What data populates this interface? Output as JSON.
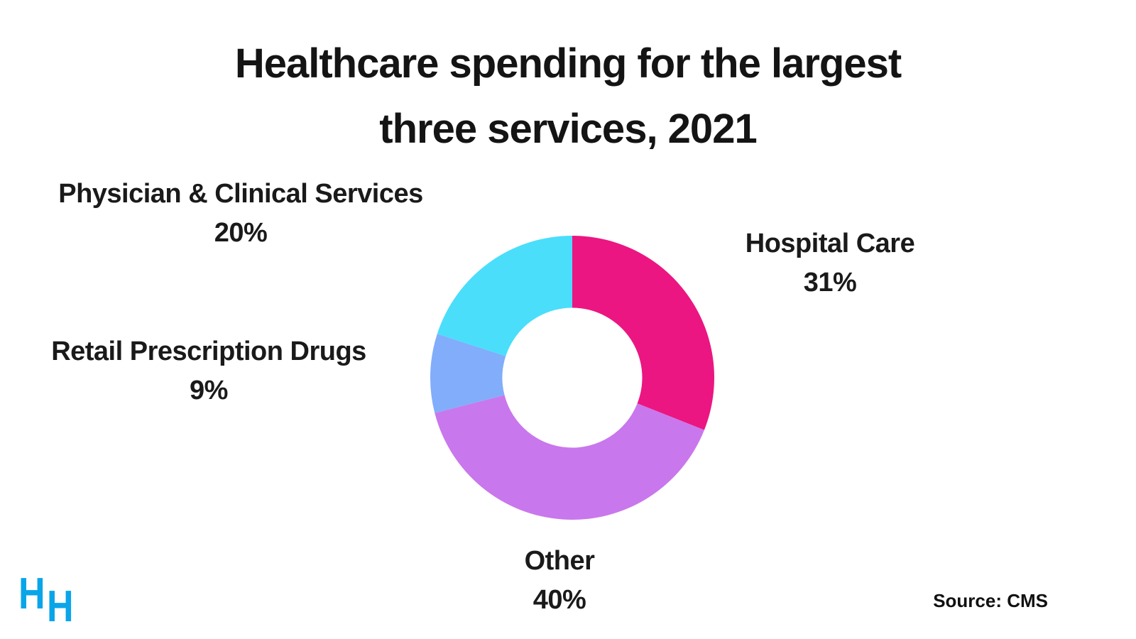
{
  "title": {
    "text": "Healthcare spending for the largest three services, 2021",
    "lines": [
      "Healthcare spending for the largest",
      "three services, 2021"
    ]
  },
  "source": "Source: CMS",
  "logo": {
    "letter1": "H",
    "letter2": "H",
    "color": "#0AA5E9"
  },
  "chart_data": {
    "type": "pie",
    "subtype": "donut",
    "title": "Healthcare spending for the largest three services, 2021",
    "categories": [
      "Hospital Care",
      "Other",
      "Retail Prescription Drugs",
      "Physician & Clinical Services"
    ],
    "values": [
      31,
      40,
      9,
      20
    ],
    "unit": "%",
    "start_angle": "12-oclock",
    "direction": "clockwise",
    "inner_radius_ratio": 0.4925,
    "legend_position": "labels-around-chart",
    "slices": [
      {
        "label": "Hospital Care",
        "value": 31,
        "display": "31%",
        "color": "#EB1682"
      },
      {
        "label": "Other",
        "value": 40,
        "display": "40%",
        "color": "#C977EC"
      },
      {
        "label": "Retail Prescription Drugs",
        "value": 9,
        "display": "9%",
        "color": "#81ADFA"
      },
      {
        "label": "Physician & Clinical Services",
        "value": 20,
        "display": "20%",
        "color": "#4ADEFB"
      }
    ]
  }
}
